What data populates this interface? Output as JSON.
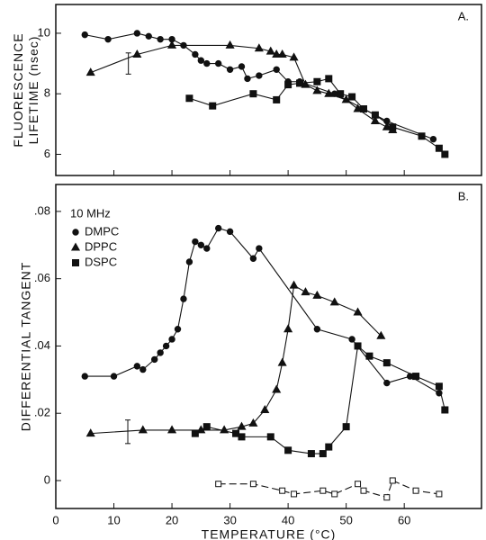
{
  "chart_data": [
    {
      "type": "scatter",
      "panel_label": "A.",
      "y_label_lines": [
        "FLUORESCENCE",
        "LIFETIME (nsec)"
      ],
      "xlim": [
        0,
        73.3
      ],
      "xticks": [
        0,
        10,
        20,
        30,
        40,
        50,
        60
      ],
      "ylim": [
        5.3,
        10.95
      ],
      "yticks": [
        6,
        8,
        10
      ],
      "error_bar": {
        "x": 12.5,
        "low": 8.65,
        "high": 9.35
      },
      "series": [
        {
          "marker": "circle",
          "color": "#111",
          "x": [
            5,
            9,
            14,
            16,
            18,
            20,
            22,
            24,
            25,
            26,
            28,
            30,
            32,
            33,
            35,
            38,
            40,
            42,
            48,
            57,
            65
          ],
          "values": [
            9.95,
            9.8,
            10,
            9.9,
            9.8,
            9.8,
            9.6,
            9.3,
            9.1,
            9,
            9,
            8.8,
            8.9,
            8.5,
            8.6,
            8.8,
            8.4,
            8.4,
            8,
            7.1,
            6.5
          ]
        },
        {
          "marker": "triangle",
          "color": "#111",
          "x": [
            6,
            14,
            20,
            30,
            35,
            37,
            38,
            39,
            41,
            43,
            45,
            47,
            50,
            52,
            55,
            57,
            58
          ],
          "values": [
            8.7,
            9.3,
            9.6,
            9.6,
            9.5,
            9.4,
            9.3,
            9.3,
            9.2,
            8.3,
            8.1,
            8,
            7.8,
            7.5,
            7.1,
            6.9,
            6.8
          ]
        },
        {
          "marker": "square",
          "color": "#111",
          "x": [
            23,
            27,
            34,
            38,
            40,
            42,
            45,
            47,
            49,
            51,
            53,
            55,
            58,
            63,
            66,
            67
          ],
          "values": [
            7.85,
            7.6,
            8,
            7.8,
            8.3,
            8.35,
            8.4,
            8.5,
            8,
            7.9,
            7.5,
            7.3,
            6.9,
            6.6,
            6.2,
            6
          ]
        }
      ]
    },
    {
      "type": "scatter",
      "panel_label": "B.",
      "y_label_lines": [
        "DIFFERENTIAL  TANGENT"
      ],
      "x_label": "TEMPERATURE (°C)",
      "legend_title": "10 MHz",
      "xlim": [
        0,
        73.3
      ],
      "xticks": [
        0,
        10,
        20,
        30,
        40,
        50,
        60
      ],
      "ylim": [
        -0.0083,
        0.088
      ],
      "yticks": [
        0,
        {
          "value": 0.02,
          "label": ".02"
        },
        {
          "value": 0.04,
          "label": ".04"
        },
        {
          "value": 0.06,
          "label": ".06"
        },
        {
          "value": 0.08,
          "label": ".08"
        }
      ],
      "error_bar": {
        "x": 12.4,
        "low": 0.011,
        "high": 0.018
      },
      "series": [
        {
          "name": "DMPC",
          "marker": "circle",
          "color": "#111",
          "x": [
            5,
            10,
            14,
            15,
            17,
            18,
            19,
            20,
            21,
            22,
            23,
            24,
            25,
            26,
            28,
            30,
            34,
            35,
            45,
            51,
            57,
            61,
            66
          ],
          "values": [
            0.031,
            0.031,
            0.034,
            0.033,
            0.036,
            0.038,
            0.04,
            0.042,
            0.045,
            0.054,
            0.065,
            0.071,
            0.07,
            0.069,
            0.075,
            0.074,
            0.066,
            0.069,
            0.045,
            0.042,
            0.029,
            0.031,
            0.026
          ]
        },
        {
          "name": "DPPC",
          "marker": "triangle",
          "color": "#111",
          "x": [
            6,
            15,
            20,
            25,
            29,
            32,
            34,
            36,
            38,
            39,
            40,
            41,
            43,
            45,
            48,
            52,
            56
          ],
          "values": [
            0.014,
            0.015,
            0.015,
            0.015,
            0.015,
            0.016,
            0.017,
            0.021,
            0.027,
            0.035,
            0.045,
            0.058,
            0.056,
            0.055,
            0.053,
            0.05,
            0.043
          ]
        },
        {
          "name": "DSPC",
          "marker": "square",
          "color": "#111",
          "x": [
            24,
            26,
            31,
            32,
            37,
            40,
            44,
            46,
            47,
            50,
            52,
            54,
            57,
            62,
            66,
            67
          ],
          "values": [
            0.014,
            0.016,
            0.014,
            0.013,
            0.013,
            0.009,
            0.008,
            0.008,
            0.01,
            0.016,
            0.04,
            0.037,
            0.035,
            0.031,
            0.028,
            0.021
          ]
        },
        {
          "marker": "open-square",
          "color": "#111",
          "x": [
            28,
            34,
            39,
            41,
            46,
            48,
            52,
            53,
            57,
            58,
            62,
            66
          ],
          "values": [
            -0.001,
            -0.001,
            -0.003,
            -0.004,
            -0.003,
            -0.004,
            -0.001,
            -0.003,
            -0.005,
            0,
            -0.003,
            -0.004
          ]
        }
      ]
    }
  ]
}
